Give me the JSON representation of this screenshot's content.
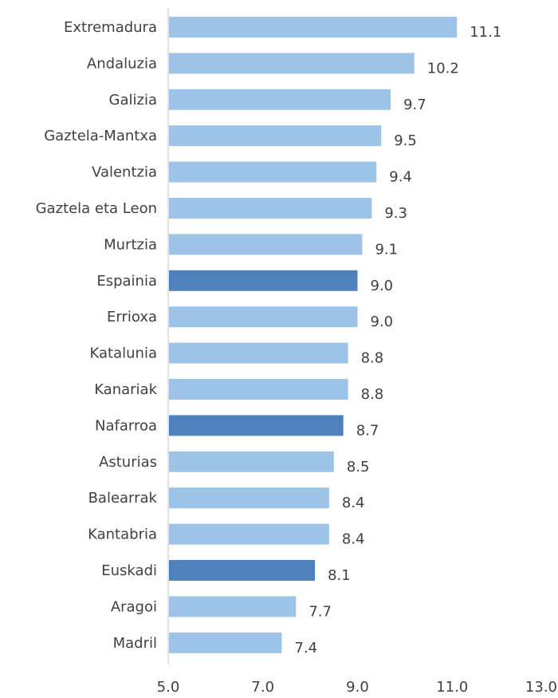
{
  "chart_data": {
    "type": "bar",
    "orientation": "horizontal",
    "title": "",
    "xlabel": "",
    "ylabel": "",
    "xlim": [
      5.0,
      13.0
    ],
    "x_ticks": [
      "5.0",
      "7.0",
      "9.0",
      "11.0",
      "13.0"
    ],
    "grid": false,
    "legend": "none",
    "categories": [
      "Extremadura",
      "Andaluzia",
      "Galizia",
      "Gaztela-Mantxa",
      "Valentzia",
      "Gaztela eta Leon",
      "Murtzia",
      "Espainia",
      "Errioxa",
      "Katalunia",
      "Kanariak",
      "Nafarroa",
      "Asturias",
      "Balearrak",
      "Kantabria",
      "Euskadi",
      "Aragoi",
      "Madril"
    ],
    "values": [
      11.1,
      10.2,
      9.7,
      9.5,
      9.4,
      9.3,
      9.1,
      9.0,
      9.0,
      8.8,
      8.8,
      8.7,
      8.5,
      8.4,
      8.4,
      8.1,
      7.7,
      7.4
    ],
    "value_labels": [
      "11.1",
      "10.2",
      "9.7",
      "9.5",
      "9.4",
      "9.3",
      "9.1",
      "9.0",
      "9.0",
      "8.8",
      "8.8",
      "8.7",
      "8.5",
      "8.4",
      "8.4",
      "8.1",
      "7.7",
      "7.4"
    ],
    "highlighted": [
      "Espainia",
      "Nafarroa",
      "Euskadi"
    ],
    "colors": {
      "bar": "#9dc3e6",
      "highlight": "#4f81bd",
      "axis": "#d9d9d9",
      "text": "#404040"
    }
  }
}
